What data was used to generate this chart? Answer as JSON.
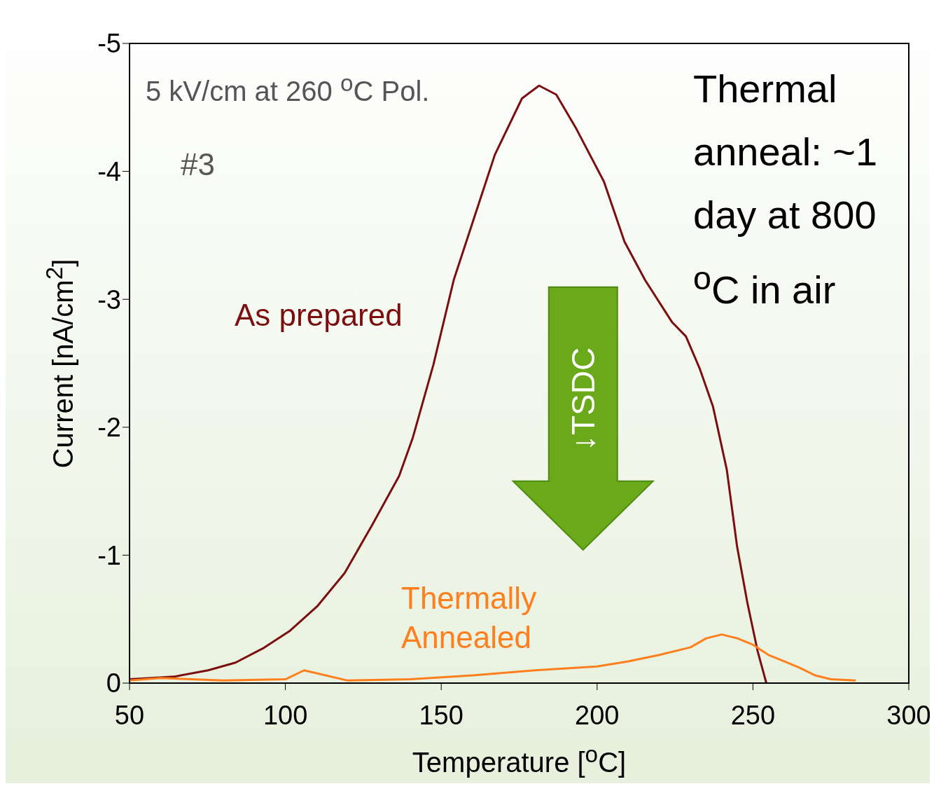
{
  "chart_data": {
    "type": "line",
    "xlabel": "Temperature [$^{o}$C]",
    "ylabel": "Current [nA/cm$^{2}$]",
    "xlim": [
      50,
      300
    ],
    "xticks": [
      50,
      100,
      150,
      200,
      250,
      300
    ],
    "ylim": [
      0,
      -5
    ],
    "yticks": [
      0,
      -1,
      -2,
      -3,
      -4,
      -5
    ],
    "legend": false,
    "marker": "none",
    "line_style": "solid",
    "annotations": [
      "5 kV/cm at 260 $^{o}$C Pol.",
      "#3",
      "Thermal anneal: ~1 day at 800 $^{o}$C in air",
      "↓TSDC"
    ],
    "series": [
      {
        "name": "As prepared",
        "color": "#7b0f0f",
        "x": [
          50,
          64.2,
          75.2,
          84,
          92.7,
          101.5,
          110.2,
          119,
          127.7,
          136.5,
          140.9,
          147.5,
          154,
          160.6,
          167.2,
          175.9,
          181.4,
          186.9,
          193.4,
          202.2,
          208.8,
          215.4,
          224.1,
          228.5,
          232.9,
          237.2,
          241.6,
          244.9,
          248.2,
          251.5,
          254.3
        ],
        "values": [
          -0.03,
          -0.05,
          -0.1,
          -0.16,
          -0.27,
          -0.41,
          -0.6,
          -0.86,
          -1.23,
          -1.62,
          -1.92,
          -2.49,
          -3.15,
          -3.64,
          -4.13,
          -4.57,
          -4.67,
          -4.6,
          -4.33,
          -3.92,
          -3.45,
          -3.15,
          -2.82,
          -2.71,
          -2.46,
          -2.16,
          -1.67,
          -1.07,
          -0.63,
          -0.25,
          0
        ]
      },
      {
        "name": "Thermally Annealed",
        "color": "#ff7f1e",
        "x": [
          50,
          60,
          80,
          100,
          106,
          120,
          140,
          160,
          180,
          200,
          210,
          220,
          230,
          235,
          240,
          245,
          250,
          255,
          260,
          265,
          270,
          275,
          283
        ],
        "values": [
          -0.02,
          -0.04,
          -0.02,
          -0.03,
          -0.1,
          -0.02,
          -0.03,
          -0.06,
          -0.1,
          -0.13,
          -0.17,
          -0.22,
          -0.28,
          -0.35,
          -0.38,
          -0.35,
          -0.3,
          -0.22,
          -0.17,
          -0.12,
          -0.06,
          -0.03,
          -0.02
        ]
      }
    ]
  }
}
